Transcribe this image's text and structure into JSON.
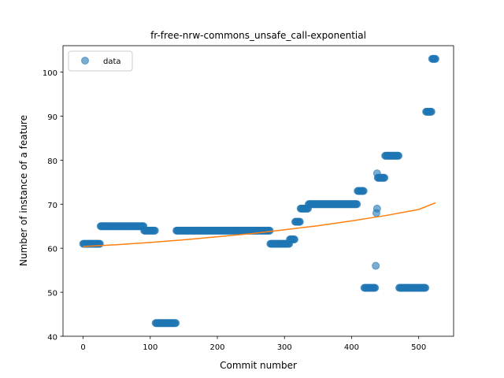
{
  "chart_data": {
    "type": "scatter",
    "title": "fr-free-nrw-commons_unsafe_call-exponential",
    "xlabel": "Commit number",
    "ylabel": "Number of instance of a feature",
    "xlim": [
      -30,
      552
    ],
    "ylim": [
      40,
      106
    ],
    "xticks": [
      0,
      100,
      200,
      300,
      400,
      500
    ],
    "yticks": [
      40,
      50,
      60,
      70,
      80,
      90,
      100
    ],
    "grid": false,
    "legend": {
      "placement": "top-left",
      "entries": [
        "data"
      ]
    },
    "colors": {
      "points": "#1f77b4",
      "fit": "#ff7f0e"
    },
    "series": [
      {
        "name": "data",
        "kind": "points",
        "segments": [
          {
            "x_start": 0,
            "x_end": 25,
            "y": 61
          },
          {
            "x_start": 26,
            "x_end": 90,
            "y": 65
          },
          {
            "x_start": 91,
            "x_end": 107,
            "y": 64
          },
          {
            "x_start": 108,
            "x_end": 138,
            "y": 43
          },
          {
            "x_start": 139,
            "x_end": 278,
            "y": 64
          },
          {
            "x_start": 279,
            "x_end": 307,
            "y": 61
          },
          {
            "x_start": 308,
            "x_end": 315,
            "y": 62
          },
          {
            "x_start": 316,
            "x_end": 323,
            "y": 66
          },
          {
            "x_start": 324,
            "x_end": 335,
            "y": 69
          },
          {
            "x_start": 336,
            "x_end": 408,
            "y": 70
          },
          {
            "x_start": 409,
            "x_end": 418,
            "y": 73
          },
          {
            "x_start": 419,
            "x_end": 435,
            "y": 51
          },
          {
            "x_start": 439,
            "x_end": 449,
            "y": 76
          },
          {
            "x_start": 450,
            "x_end": 470,
            "y": 81
          },
          {
            "x_start": 471,
            "x_end": 510,
            "y": 51
          },
          {
            "x_start": 511,
            "x_end": 519,
            "y": 91
          },
          {
            "x_start": 520,
            "x_end": 525,
            "y": 103
          }
        ],
        "extra_points": [
          {
            "x": 436,
            "y": 56
          },
          {
            "x": 437,
            "y": 68
          },
          {
            "x": 438,
            "y": 69
          },
          {
            "x": 438,
            "y": 77
          }
        ]
      },
      {
        "kind": "line",
        "x": [
          0,
          50,
          100,
          150,
          200,
          250,
          300,
          350,
          400,
          450,
          500,
          525
        ],
        "y": [
          60.4,
          60.8,
          61.3,
          61.9,
          62.6,
          63.3,
          64.2,
          65.1,
          66.2,
          67.4,
          68.8,
          70.3
        ]
      }
    ]
  }
}
